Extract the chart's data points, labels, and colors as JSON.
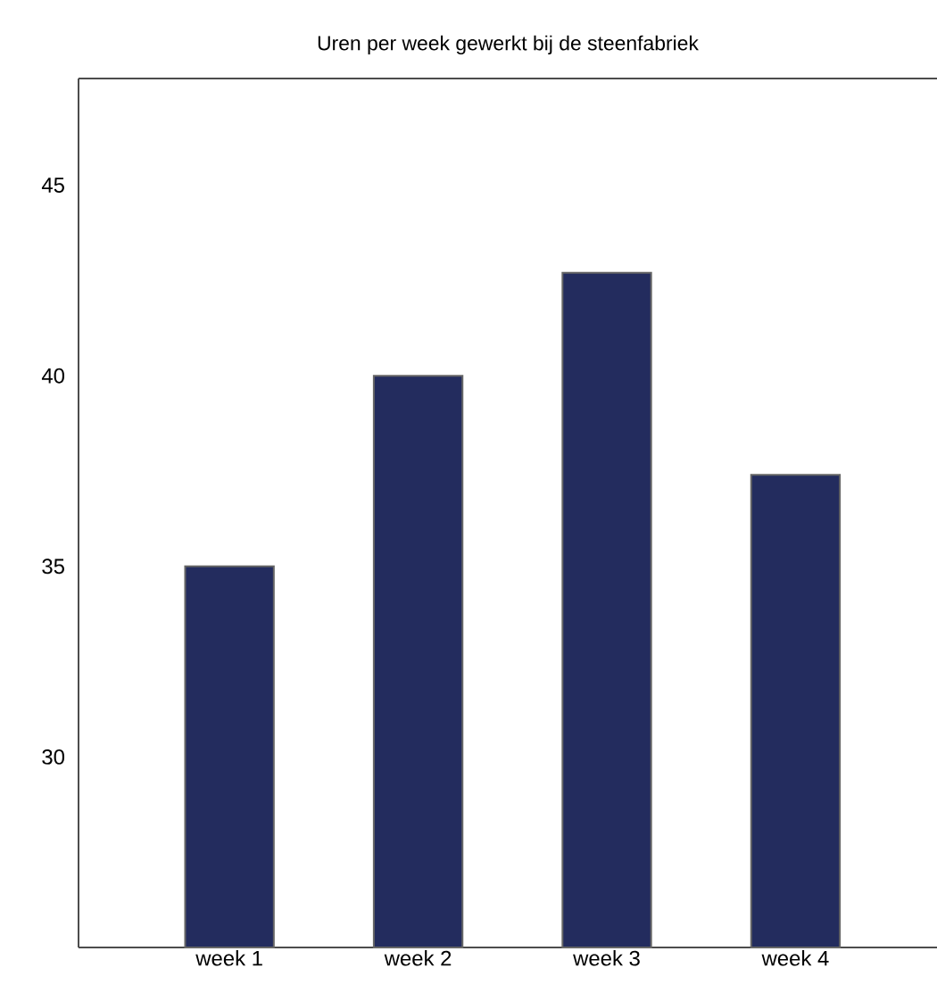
{
  "chart_data": {
    "type": "bar",
    "title": "Uren per week gewerkt bij de steenfabriek",
    "categories": [
      "week 1",
      "week 2",
      "week 3",
      "week 4"
    ],
    "values": [
      35,
      40,
      42.7,
      37.4
    ],
    "color": "#232c5e",
    "ylim": [
      25,
      47.8
    ],
    "yticks": [
      30,
      35,
      40,
      45
    ],
    "grid": false
  }
}
